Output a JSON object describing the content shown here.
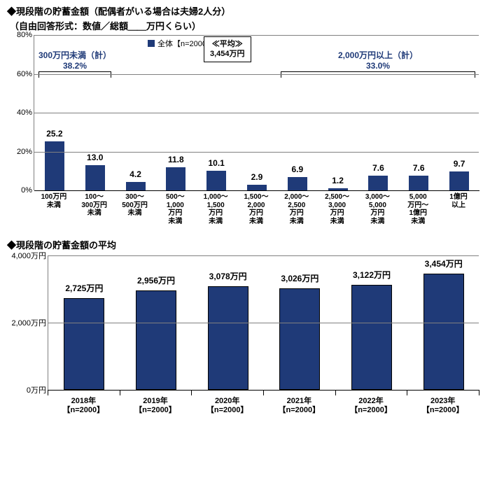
{
  "title_line1": "◆現段階の貯蓄金額（配偶者がいる場合は夫婦2人分）",
  "title_line2": "（自由回答形式：数値／総額＿＿万円くらい）",
  "chart1": {
    "type": "bar",
    "legend_label": "全体【n=2000】",
    "ylim": [
      0,
      80
    ],
    "ytick_step": 20,
    "y_unit": "%",
    "bar_color": "#1f3a78",
    "grid_color": "#808080",
    "categories": [
      "100万円\n未満",
      "100～\n300万円\n未満",
      "300～\n500万円\n未満",
      "500～\n1,000\n万円\n未満",
      "1,000～\n1,500\n万円\n未満",
      "1,500～\n2,000\n万円\n未満",
      "2,000～\n2,500\n万円\n未満",
      "2,500～\n3,000\n万円\n未満",
      "3,000～\n5,000\n万円\n未満",
      "5,000\n万円～\n1億円\n未満",
      "1億円\n以上"
    ],
    "values": [
      25.2,
      13.0,
      4.2,
      11.8,
      10.1,
      2.9,
      6.9,
      1.2,
      7.6,
      7.6,
      9.7
    ],
    "avg_box": {
      "line1": "≪平均≫",
      "line2": "3,454万円"
    },
    "bracket_left": {
      "line1": "300万円未満（計）",
      "line2": "38.2%"
    },
    "bracket_right": {
      "line1": "2,000万円以上（計）",
      "line2": "33.0%"
    }
  },
  "chart2_title": "◆現段階の貯蓄金額の平均",
  "chart2": {
    "type": "bar",
    "ylim": [
      0,
      4000
    ],
    "ytick_step": 2000,
    "y_unit": "万円",
    "bar_color": "#1f3a78",
    "grid_color": "#808080",
    "categories": [
      "2018年\n【n=2000】",
      "2019年\n【n=2000】",
      "2020年\n【n=2000】",
      "2021年\n【n=2000】",
      "2022年\n【n=2000】",
      "2023年\n【n=2000】"
    ],
    "values": [
      2725,
      2956,
      3078,
      3026,
      3122,
      3454
    ],
    "value_labels": [
      "2,725万円",
      "2,956万円",
      "3,078万円",
      "3,026万円",
      "3,122万円",
      "3,454万円"
    ]
  }
}
